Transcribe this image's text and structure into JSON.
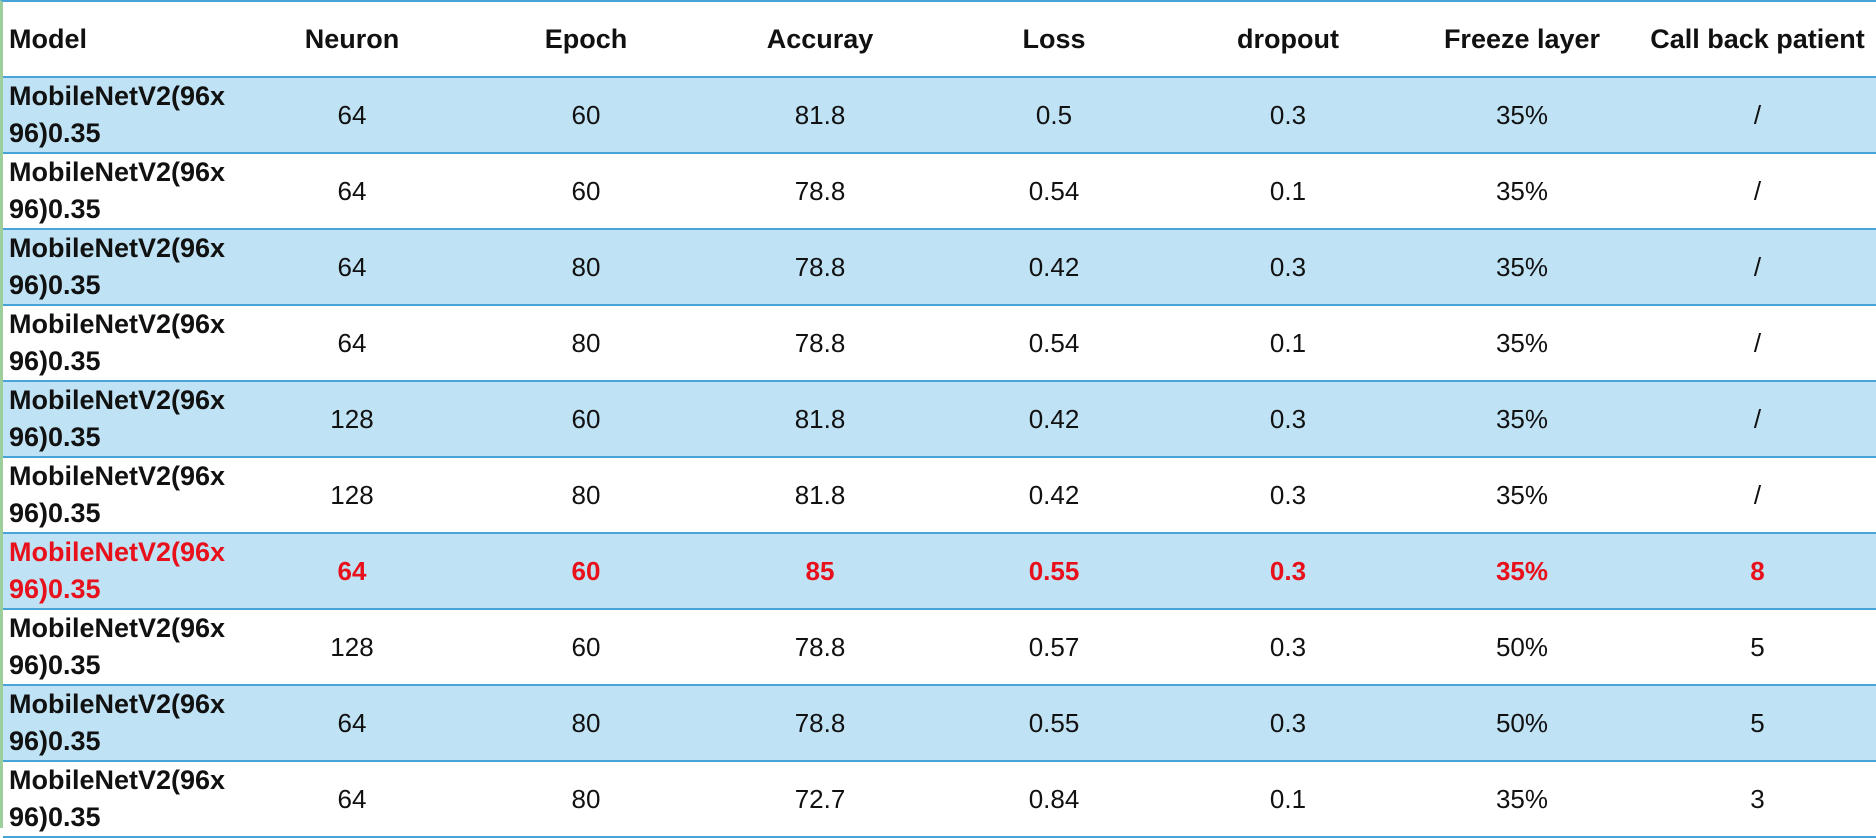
{
  "colors": {
    "stripe": "#bfe2f4",
    "rule": "#4aa3d8",
    "highlight_text": "#e8101a"
  },
  "headers": {
    "model": "Model",
    "neuron": "Neuron",
    "epoch": "Epoch",
    "accuracy": "Accuray",
    "loss": "Loss",
    "dropout": "dropout",
    "freeze": "Freeze layer",
    "callback": "Call back patient"
  },
  "rows": [
    {
      "model": "MobileNetV2(96x96)0.35",
      "neuron": "64",
      "epoch": "60",
      "accuracy": "81.8",
      "loss": "0.5",
      "dropout": "0.3",
      "freeze": "35%",
      "callback": "/"
    },
    {
      "model": "MobileNetV2(96x96)0.35",
      "neuron": "64",
      "epoch": "60",
      "accuracy": "78.8",
      "loss": "0.54",
      "dropout": "0.1",
      "freeze": "35%",
      "callback": "/"
    },
    {
      "model": "MobileNetV2(96x96)0.35",
      "neuron": "64",
      "epoch": "80",
      "accuracy": "78.8",
      "loss": "0.42",
      "dropout": "0.3",
      "freeze": "35%",
      "callback": "/"
    },
    {
      "model": "MobileNetV2(96x96)0.35",
      "neuron": "64",
      "epoch": "80",
      "accuracy": "78.8",
      "loss": "0.54",
      "dropout": "0.1",
      "freeze": "35%",
      "callback": "/"
    },
    {
      "model": "MobileNetV2(96x96)0.35",
      "neuron": "128",
      "epoch": "60",
      "accuracy": "81.8",
      "loss": "0.42",
      "dropout": "0.3",
      "freeze": "35%",
      "callback": "/"
    },
    {
      "model": "MobileNetV2(96x96)0.35",
      "neuron": "128",
      "epoch": "80",
      "accuracy": "81.8",
      "loss": "0.42",
      "dropout": "0.3",
      "freeze": "35%",
      "callback": "/"
    },
    {
      "model": "MobileNetV2(96x96)0.35",
      "neuron": "64",
      "epoch": "60",
      "accuracy": "85",
      "loss": "0.55",
      "dropout": "0.3",
      "freeze": "35%",
      "callback": "8",
      "highlight": true
    },
    {
      "model": "MobileNetV2(96x96)0.35",
      "neuron": "128",
      "epoch": "60",
      "accuracy": "78.8",
      "loss": "0.57",
      "dropout": "0.3",
      "freeze": "50%",
      "callback": "5"
    },
    {
      "model": "MobileNetV2(96x96)0.35",
      "neuron": "64",
      "epoch": "80",
      "accuracy": "78.8",
      "loss": "0.55",
      "dropout": "0.3",
      "freeze": "50%",
      "callback": "5"
    },
    {
      "model": "MobileNetV2(96x96)0.35",
      "neuron": "64",
      "epoch": "80",
      "accuracy": "72.7",
      "loss": "0.84",
      "dropout": "0.1",
      "freeze": "35%",
      "callback": "3"
    }
  ]
}
